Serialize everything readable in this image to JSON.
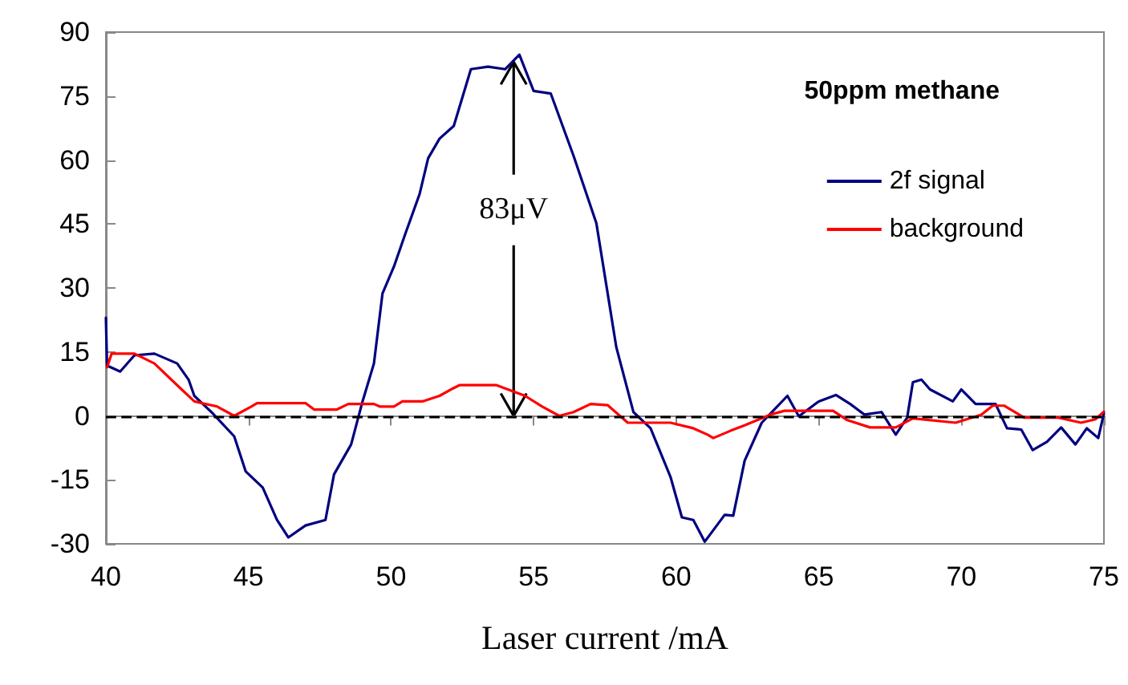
{
  "chart_data": {
    "type": "line",
    "title": "50ppm methane",
    "xlabel": "Laser current /mA",
    "xlim": [
      40,
      75
    ],
    "xticks": [
      40,
      45,
      50,
      55,
      60,
      65,
      70,
      75
    ],
    "ylim": [
      -30,
      90
    ],
    "yticks": [
      -30,
      -15,
      0,
      15,
      30,
      45,
      60,
      75,
      90
    ],
    "grid": false,
    "legend": "top right",
    "marker": "none",
    "ref_lines": [
      {
        "axis": "y",
        "value": 0,
        "label": null,
        "color": "#000000",
        "line_style": "dashed"
      }
    ],
    "annotations": [
      {
        "text": "83μV",
        "x": 54.3,
        "y": 83
      }
    ],
    "series": [
      {
        "name": "2f signal",
        "color": "#000080",
        "x": [
          40,
          40.04,
          40.5,
          41.0,
          41.7,
          42.5,
          42.9,
          43.1,
          43.7,
          44.5,
          44.9,
          45.5,
          46.0,
          46.4,
          47.0,
          47.7,
          48.0,
          48.6,
          49.0,
          49.4,
          49.7,
          50.1,
          50.5,
          51.0,
          51.3,
          51.7,
          52.2,
          52.8,
          53.4,
          54.0,
          54.5,
          55.0,
          55.6,
          56.4,
          57.2,
          57.9,
          58.5,
          59.1,
          59.8,
          60.2,
          60.6,
          61.0,
          61.7,
          62.0,
          62.4,
          63.0,
          63.9,
          64.3,
          65.0,
          65.6,
          66.1,
          66.6,
          67.2,
          67.7,
          68.1,
          68.3,
          68.6,
          68.9,
          69.7,
          70.0,
          70.5,
          71.2,
          71.6,
          72.1,
          72.5,
          73.0,
          73.5,
          74.0,
          74.4,
          74.8,
          75
        ],
        "values": [
          23,
          11.8,
          10.4,
          14.2,
          14.6,
          12.3,
          8.5,
          4.7,
          0.9,
          -4.8,
          -13,
          -16.8,
          -24.4,
          -28.5,
          -25.7,
          -24.4,
          -13.7,
          -6.7,
          3.4,
          12.3,
          28.7,
          35,
          42.7,
          52,
          60.4,
          65,
          68,
          81.3,
          81.9,
          81.3,
          84.7,
          76.2,
          75.6,
          61,
          45.2,
          16.1,
          0.9,
          -2.9,
          -14.3,
          -23.8,
          -24.4,
          -29.5,
          -23.2,
          -23.4,
          -10.5,
          -1.6,
          4.7,
          -0.1,
          3.4,
          4.9,
          2.8,
          0.3,
          0.9,
          -4.4,
          -0.4,
          7.9,
          8.5,
          6.2,
          3.4,
          6.2,
          2.8,
          2.8,
          -2.9,
          -3.2,
          -8,
          -6.1,
          -2.7,
          -6.7,
          -2.9,
          -5.2,
          0.6
        ]
      },
      {
        "name": "background",
        "color": "#ff0000",
        "x": [
          40.04,
          40.2,
          41.0,
          41.7,
          42.5,
          43.1,
          43.9,
          44.5,
          45.1,
          45.3,
          47.0,
          47.3,
          48.1,
          48.5,
          49.4,
          49.6,
          50.1,
          50.4,
          51.1,
          51.7,
          52.1,
          52.4,
          53.7,
          54.7,
          55.3,
          55.9,
          56.4,
          57.0,
          57.6,
          58.3,
          58.9,
          59.8,
          60.6,
          61.1,
          61.3,
          61.9,
          62.4,
          63.3,
          63.8,
          65.5,
          66.0,
          66.8,
          67.7,
          68.3,
          69.8,
          70.7,
          71.1,
          71.5,
          72.2,
          73.4,
          74.2,
          74.7,
          75
        ],
        "values": [
          11.4,
          14.6,
          14.6,
          12.3,
          7.2,
          3.4,
          2.2,
          0,
          2.2,
          3.0,
          3.0,
          1.5,
          1.5,
          2.8,
          2.8,
          2.2,
          2.2,
          3.4,
          3.4,
          4.7,
          6.2,
          7.2,
          7.2,
          4.7,
          2.2,
          0,
          0.9,
          2.8,
          2.5,
          -1.6,
          -1.6,
          -1.6,
          -2.9,
          -4.4,
          -5.2,
          -3.5,
          -2.2,
          0.3,
          1.2,
          1.2,
          -1.0,
          -2.7,
          -2.7,
          -0.6,
          -1.6,
          0.3,
          2.4,
          2.4,
          -0.4,
          -0.4,
          -1.6,
          -0.8,
          1
        ]
      }
    ]
  }
}
